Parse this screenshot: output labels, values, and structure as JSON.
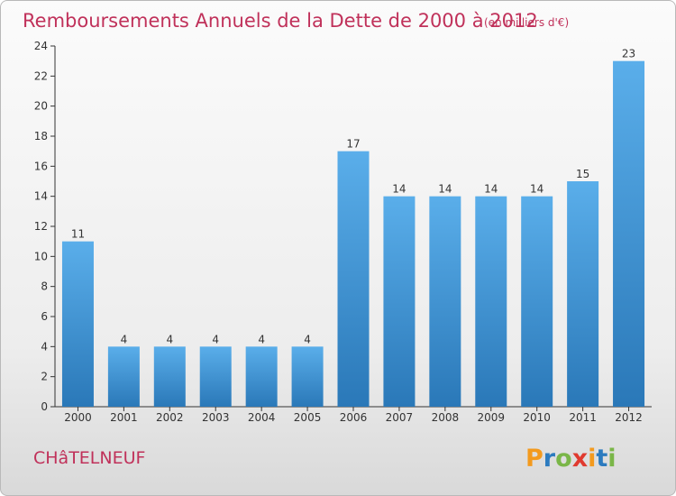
{
  "title": "Remboursements Annuels de la Dette de 2000 à 2012",
  "unit_label": "(en milliers d'€)",
  "commune": "CHâTELNEUF",
  "logo": {
    "text": "Proxiti",
    "letters": [
      {
        "char": "P",
        "color": "#f39a1e"
      },
      {
        "char": "r",
        "color": "#2c7bbf"
      },
      {
        "char": "o",
        "color": "#7ab648"
      },
      {
        "char": "x",
        "color": "#e03a2f"
      },
      {
        "char": "i",
        "color": "#f39a1e"
      },
      {
        "char": "t",
        "color": "#2c7bbf"
      },
      {
        "char": "i",
        "color": "#7ab648"
      }
    ]
  },
  "colors": {
    "bar_top": "#5aaeea",
    "bar_bottom": "#2a78b8",
    "title": "#c0315a",
    "axis": "#333333"
  },
  "chart_data": {
    "type": "bar",
    "categories": [
      "2000",
      "2001",
      "2002",
      "2003",
      "2004",
      "2005",
      "2006",
      "2007",
      "2008",
      "2009",
      "2010",
      "2011",
      "2012"
    ],
    "values": [
      11,
      4,
      4,
      4,
      4,
      4,
      17,
      14,
      14,
      14,
      14,
      15,
      23
    ],
    "ylim": [
      0,
      24
    ],
    "yticks": [
      0,
      2,
      4,
      6,
      8,
      10,
      12,
      14,
      16,
      18,
      20,
      22,
      24
    ],
    "grid": false,
    "data_labels": true
  }
}
